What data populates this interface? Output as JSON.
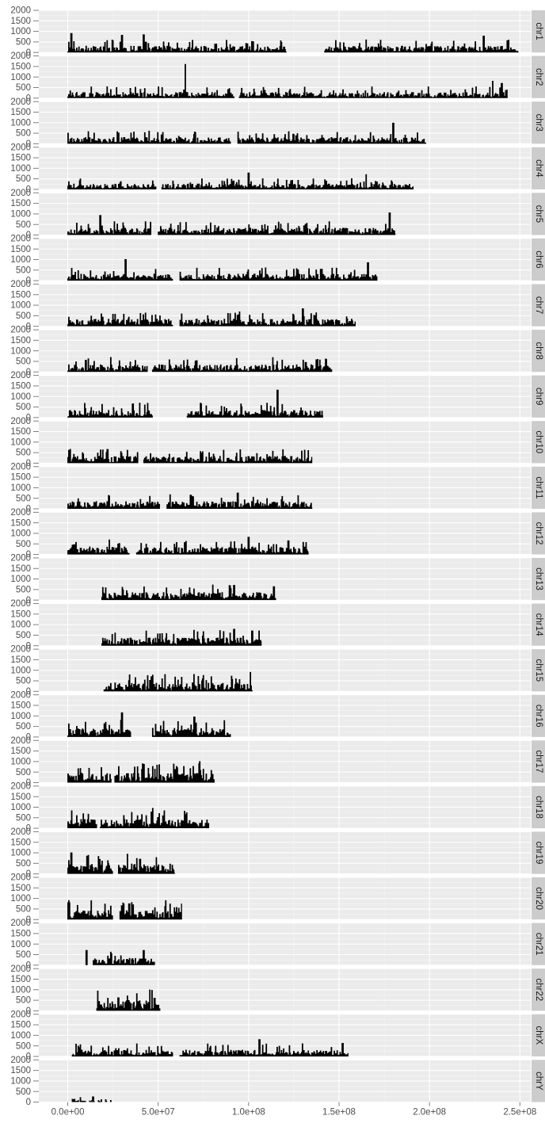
{
  "chart_data": {
    "type": "bar",
    "title": "",
    "xlabel": "",
    "ylabel": "",
    "xlim": [
      -16000000,
      256000000
    ],
    "ylim": [
      0,
      2000
    ],
    "x_ticks": [
      0,
      50000000,
      100000000,
      150000000,
      200000000,
      250000000
    ],
    "x_tick_labels": [
      "0.0e+00",
      "5.0e+07",
      "1.0e+08",
      "1.5e+08",
      "2.0e+08",
      "2.5e+08"
    ],
    "y_ticks": [
      0,
      500,
      1000,
      1500,
      2000
    ],
    "y_tick_labels": [
      "0",
      "500",
      "1000",
      "1500",
      "2000"
    ],
    "grid": true,
    "panels": [
      {
        "name": "chr1",
        "length": 249000000,
        "gaps": [
          [
            121000000,
            142000000
          ]
        ],
        "peaks": [
          [
            2000000,
            900
          ],
          [
            30000000,
            820
          ],
          [
            42000000,
            840
          ],
          [
            230000000,
            780
          ]
        ],
        "level": 200
      },
      {
        "name": "chr2",
        "length": 243000000,
        "gaps": [
          [
            92000000,
            95000000
          ]
        ],
        "peaks": [
          [
            65000000,
            1600
          ],
          [
            235000000,
            800
          ],
          [
            240000000,
            700
          ]
        ],
        "level": 180
      },
      {
        "name": "chr3",
        "length": 198000000,
        "gaps": [
          [
            90000000,
            94000000
          ]
        ],
        "peaks": [
          [
            180000000,
            980
          ],
          [
            45000000,
            600
          ]
        ],
        "level": 200
      },
      {
        "name": "chr4",
        "length": 191000000,
        "gaps": [
          [
            49000000,
            52000000
          ]
        ],
        "peaks": [
          [
            100000000,
            780
          ],
          [
            165000000,
            700
          ]
        ],
        "level": 170
      },
      {
        "name": "chr5",
        "length": 181000000,
        "gaps": [
          [
            46000000,
            50000000
          ]
        ],
        "peaks": [
          [
            18000000,
            930
          ],
          [
            178000000,
            1050
          ]
        ],
        "level": 220
      },
      {
        "name": "chr6",
        "length": 171000000,
        "gaps": [
          [
            58000000,
            62000000
          ]
        ],
        "peaks": [
          [
            32000000,
            1000
          ],
          [
            166000000,
            850
          ]
        ],
        "level": 210
      },
      {
        "name": "chr7",
        "length": 159000000,
        "gaps": [
          [
            58000000,
            62000000
          ]
        ],
        "peaks": [
          [
            130000000,
            830
          ]
        ],
        "level": 230
      },
      {
        "name": "chr8",
        "length": 146000000,
        "gaps": [
          [
            44000000,
            47000000
          ]
        ],
        "peaks": [
          [
            10000000,
            550
          ],
          [
            143000000,
            600
          ]
        ],
        "level": 230
      },
      {
        "name": "chr9",
        "length": 141000000,
        "gaps": [
          [
            47000000,
            66000000
          ]
        ],
        "peaks": [
          [
            36000000,
            650
          ],
          [
            116000000,
            1300
          ]
        ],
        "level": 230
      },
      {
        "name": "chr10",
        "length": 135000000,
        "gaps": [
          [
            39000000,
            42000000
          ]
        ],
        "peaks": [
          [
            22000000,
            650
          ],
          [
            133000000,
            600
          ]
        ],
        "level": 220
      },
      {
        "name": "chr11",
        "length": 135000000,
        "gaps": [
          [
            51000000,
            55000000
          ]
        ],
        "peaks": [
          [
            94000000,
            750
          ],
          [
            68000000,
            650
          ]
        ],
        "level": 230
      },
      {
        "name": "chr12",
        "length": 133000000,
        "gaps": [
          [
            34000000,
            38000000
          ]
        ],
        "peaks": [
          [
            100000000,
            820
          ],
          [
            122000000,
            650
          ]
        ],
        "level": 240
      },
      {
        "name": "chr13",
        "length": 115000000,
        "gaps": [
          [
            0,
            19000000
          ]
        ],
        "peaks": [
          [
            92000000,
            700
          ],
          [
            114000000,
            640
          ]
        ],
        "level": 240
      },
      {
        "name": "chr14",
        "length": 107000000,
        "gaps": [
          [
            0,
            19000000
          ]
        ],
        "peaks": [
          [
            92000000,
            780
          ],
          [
            102000000,
            700
          ]
        ],
        "level": 250
      },
      {
        "name": "chr15",
        "length": 102000000,
        "gaps": [
          [
            0,
            20000000
          ]
        ],
        "peaks": [
          [
            101000000,
            900
          ]
        ],
        "level": 270
      },
      {
        "name": "chr16",
        "length": 90000000,
        "gaps": [
          [
            35000000,
            47000000
          ]
        ],
        "peaks": [
          [
            30000000,
            1150
          ],
          [
            70000000,
            950
          ]
        ],
        "level": 280
      },
      {
        "name": "chr17",
        "length": 81000000,
        "gaps": [
          [
            24000000,
            26000000
          ]
        ],
        "peaks": [
          [
            73000000,
            1000
          ]
        ],
        "level": 300
      },
      {
        "name": "chr18",
        "length": 78000000,
        "gaps": [
          [
            16000000,
            18000000
          ]
        ],
        "peaks": [
          [
            47000000,
            950
          ],
          [
            5000000,
            600
          ]
        ],
        "level": 280
      },
      {
        "name": "chr19",
        "length": 59000000,
        "gaps": [
          [
            25000000,
            28000000
          ]
        ],
        "peaks": [
          [
            2000000,
            1000
          ],
          [
            40000000,
            700
          ]
        ],
        "level": 330
      },
      {
        "name": "chr20",
        "length": 63000000,
        "gaps": [
          [
            25000000,
            29000000
          ]
        ],
        "peaks": [
          [
            1000000,
            800
          ],
          [
            34000000,
            750
          ]
        ],
        "level": 300
      },
      {
        "name": "chr21",
        "length": 48000000,
        "gaps": [
          [
            0,
            10000000
          ],
          [
            11000000,
            14000000
          ]
        ],
        "peaks": [
          [
            10500000,
            700
          ],
          [
            42000000,
            700
          ]
        ],
        "level": 230
      },
      {
        "name": "chr22",
        "length": 51000000,
        "gaps": [
          [
            0,
            16000000
          ]
        ],
        "peaks": [
          [
            28000000,
            620
          ],
          [
            48000000,
            600
          ]
        ],
        "level": 330
      },
      {
        "name": "chrX",
        "length": 155000000,
        "gaps": [
          [
            0,
            2500000
          ],
          [
            58000000,
            62000000
          ]
        ],
        "peaks": [
          [
            106000000,
            800
          ],
          [
            152000000,
            620
          ]
        ],
        "level": 200
      },
      {
        "name": "chrY",
        "length": 24000000,
        "gaps": [
          [
            0,
            2500000
          ],
          [
            6000000,
            7000000
          ],
          [
            10000000,
            12000000
          ],
          [
            15000000,
            17000000
          ],
          [
            19000000,
            21000000
          ],
          [
            21500000,
            23500000
          ]
        ],
        "peaks": [
          [
            14000000,
            250
          ]
        ],
        "level": 90
      }
    ]
  }
}
